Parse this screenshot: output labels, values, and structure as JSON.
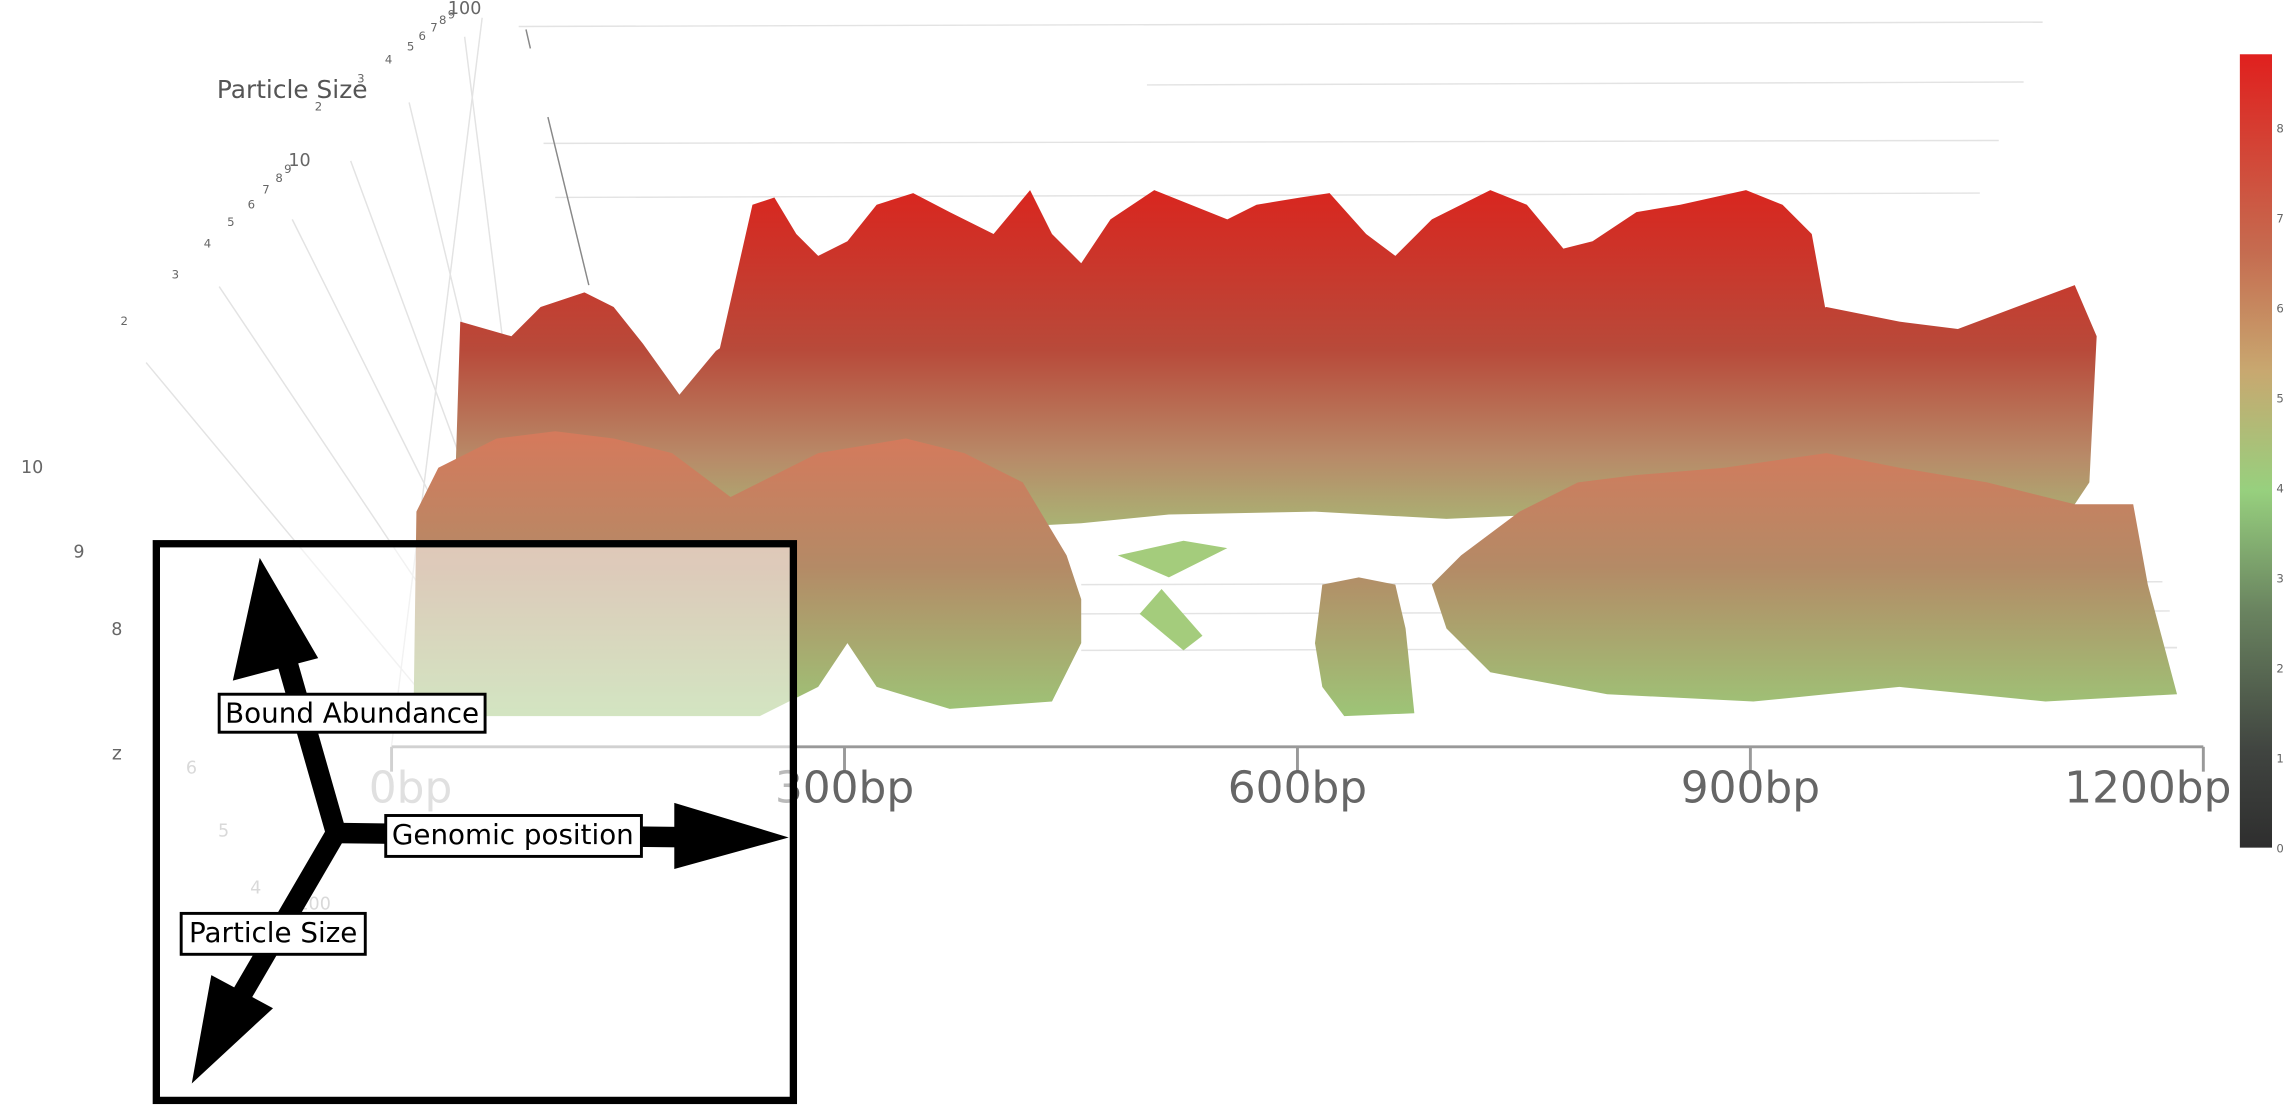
{
  "scene": {
    "depth_axis_title": "Particle Size",
    "depth_ticks_upper": [
      "100",
      "9",
      "8",
      "7",
      "6",
      "5",
      "4",
      "3",
      "2"
    ],
    "depth_ticks_lower": [
      "10",
      "9",
      "8",
      "7",
      "6",
      "5",
      "4",
      "3",
      "2"
    ],
    "z_axis_title": "z",
    "z_ticks": [
      "10",
      "9",
      "8",
      "6",
      "5",
      "4",
      "100"
    ],
    "x_ticks": [
      "0bp",
      "300bp",
      "600bp",
      "900bp",
      "1200bp"
    ],
    "colorbar_ticks": [
      "0",
      "1",
      "2",
      "3",
      "4",
      "5",
      "6",
      "7",
      "8"
    ]
  },
  "inset": {
    "up_label": "Bound Abundance",
    "right_label": "Genomic position",
    "down_label": "Particle Size"
  }
}
